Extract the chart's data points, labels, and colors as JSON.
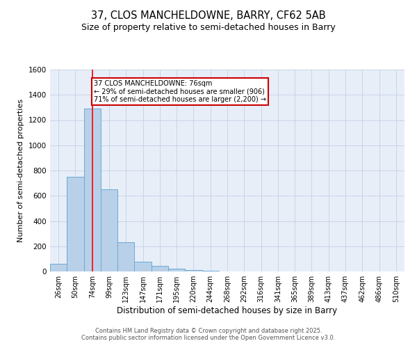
{
  "title_line1": "37, CLOS MANCHELDOWNE, BARRY, CF62 5AB",
  "title_line2": "Size of property relative to semi-detached houses in Barry",
  "xlabel": "Distribution of semi-detached houses by size in Barry",
  "ylabel": "Number of semi-detached properties",
  "categories": [
    "26sqm",
    "50sqm",
    "74sqm",
    "99sqm",
    "123sqm",
    "147sqm",
    "171sqm",
    "195sqm",
    "220sqm",
    "244sqm",
    "268sqm",
    "292sqm",
    "316sqm",
    "341sqm",
    "365sqm",
    "389sqm",
    "413sqm",
    "437sqm",
    "462sqm",
    "486sqm",
    "510sqm"
  ],
  "values": [
    60,
    750,
    1290,
    650,
    230,
    80,
    42,
    20,
    10,
    8,
    0,
    0,
    0,
    0,
    0,
    0,
    0,
    0,
    0,
    0,
    0
  ],
  "bar_color": "#b8d0e8",
  "bar_edge_color": "#6aaad4",
  "red_line_x": 2,
  "annotation_text": "37 CLOS MANCHELDOWNE: 76sqm\n← 29% of semi-detached houses are smaller (906)\n71% of semi-detached houses are larger (2,200) →",
  "annotation_box_color": "#ffffff",
  "annotation_box_edge_color": "#cc0000",
  "ylim": [
    0,
    1600
  ],
  "yticks": [
    0,
    200,
    400,
    600,
    800,
    1000,
    1200,
    1400,
    1600
  ],
  "grid_color": "#c8d4e8",
  "background_color": "#e8eef8",
  "footer_line1": "Contains HM Land Registry data © Crown copyright and database right 2025.",
  "footer_line2": "Contains public sector information licensed under the Open Government Licence v3.0."
}
